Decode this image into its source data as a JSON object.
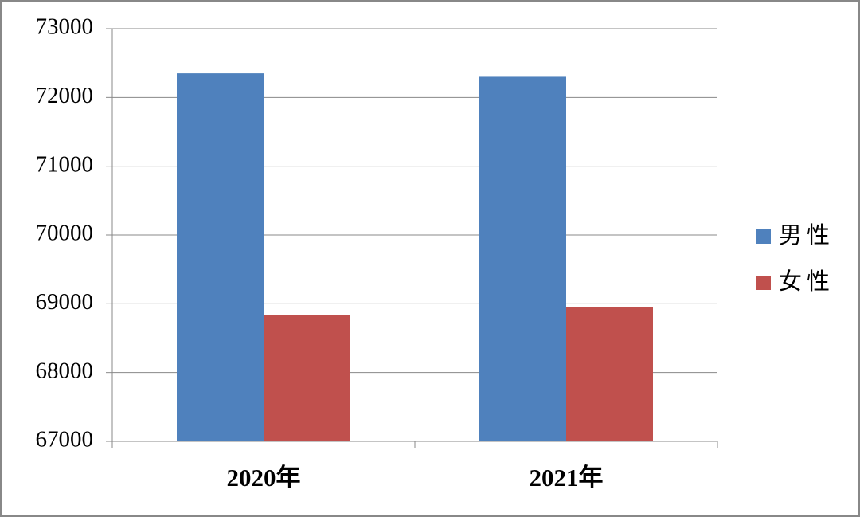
{
  "chart_data": {
    "type": "bar",
    "categories": [
      "2020年",
      "2021年"
    ],
    "series": [
      {
        "name": "男性",
        "color": "#4f81bd",
        "values": [
          72350,
          72300
        ]
      },
      {
        "name": "女性",
        "color": "#c0504d",
        "values": [
          68840,
          68950
        ]
      }
    ],
    "ylim": [
      67000,
      73000
    ],
    "yticks": [
      67000,
      68000,
      69000,
      70000,
      71000,
      72000,
      73000
    ],
    "grid": true,
    "legend": "right"
  }
}
